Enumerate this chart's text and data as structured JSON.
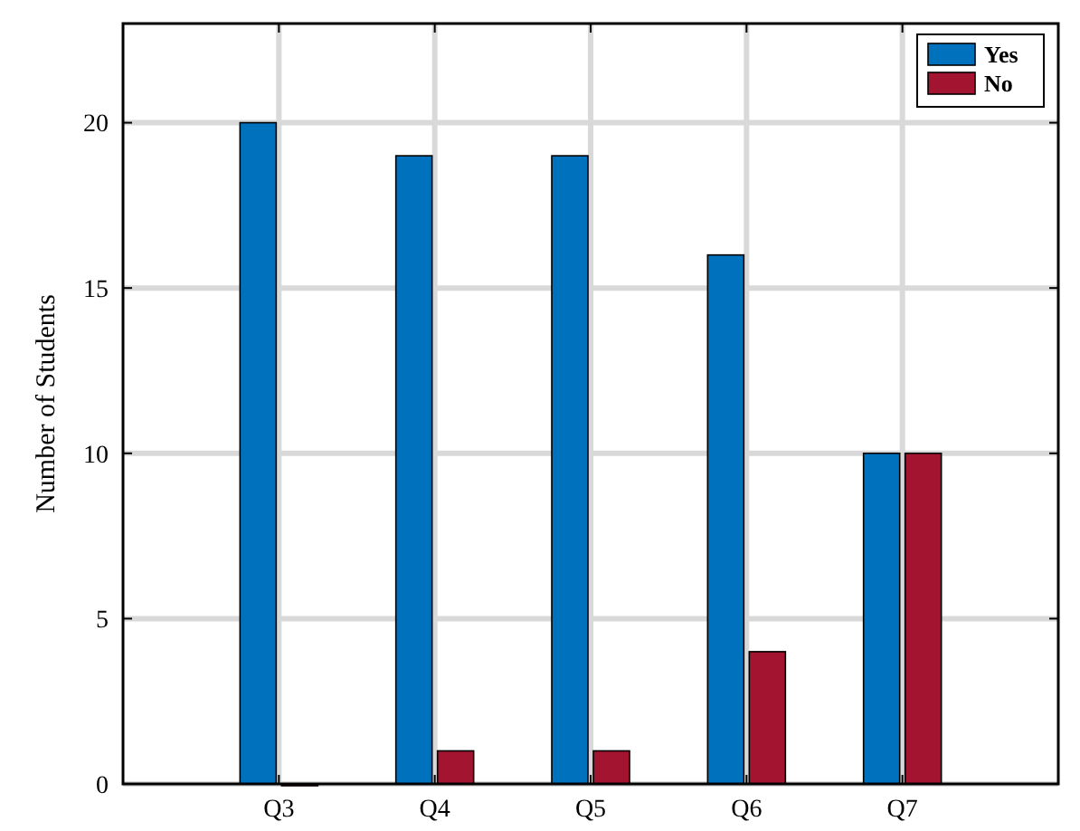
{
  "chart_data": {
    "type": "bar",
    "ylabel": "Number of Students",
    "categories": [
      "Q3",
      "Q4",
      "Q5",
      "Q6",
      "Q7"
    ],
    "series": [
      {
        "name": "Yes",
        "color": "#0072bd",
        "values": [
          20,
          19,
          19,
          16,
          10
        ]
      },
      {
        "name": "No",
        "color": "#a2142f",
        "values": [
          0,
          1,
          1,
          4,
          10
        ]
      }
    ],
    "ylim": [
      0,
      23
    ],
    "yticks": [
      0,
      5,
      10,
      15,
      20
    ],
    "grid": true,
    "legend": "top right"
  }
}
